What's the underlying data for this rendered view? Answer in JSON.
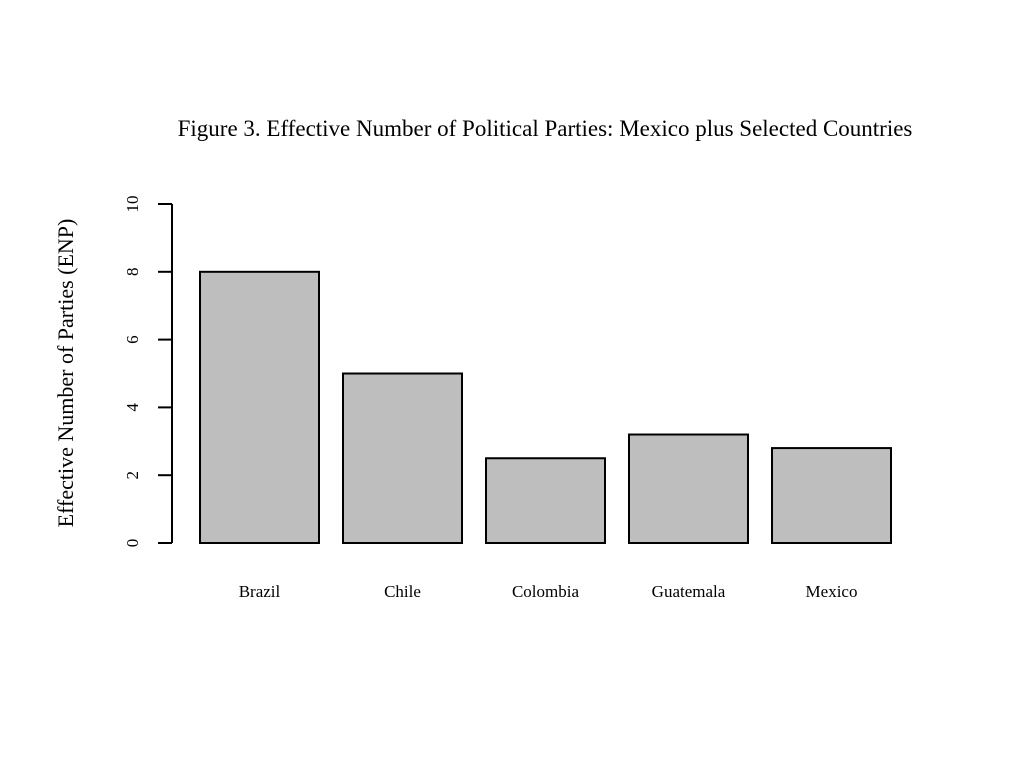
{
  "chart_data": {
    "type": "bar",
    "title": "Figure 3. Effective Number of Political Parties: Mexico plus Selected Countries",
    "xlabel": "",
    "ylabel": "Effective Number of Parties (ENP)",
    "categories": [
      "Brazil",
      "Chile",
      "Colombia",
      "Guatemala",
      "Mexico"
    ],
    "values": [
      8,
      5,
      2.5,
      3.2,
      2.8
    ],
    "ylim": [
      0,
      10
    ],
    "yticks": [
      "0",
      "2",
      "4",
      "6",
      "8",
      "10"
    ],
    "grid": false,
    "bar_color": "#bebebe",
    "edge_color": "#000000"
  }
}
